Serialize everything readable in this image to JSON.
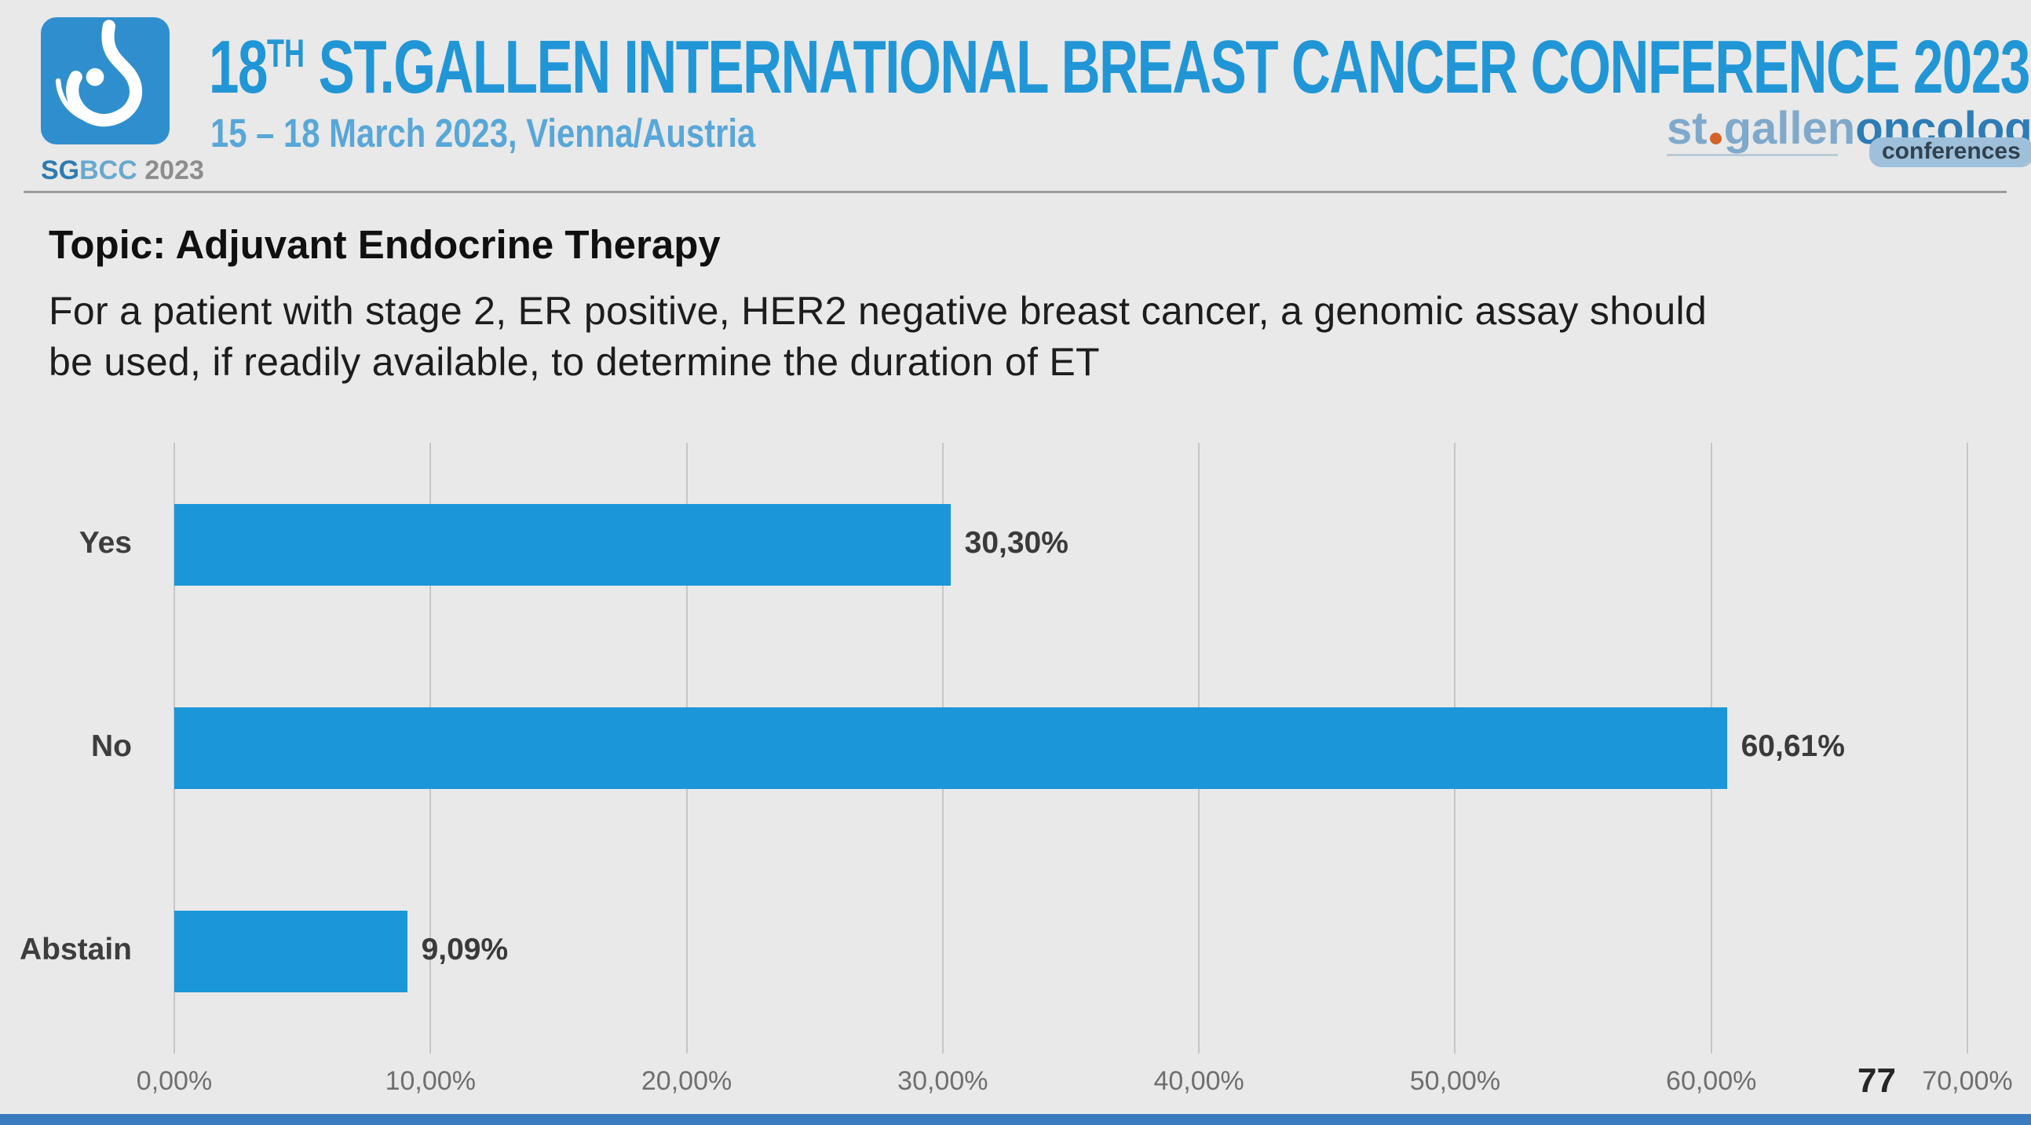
{
  "header": {
    "badge_sg": "SG",
    "badge_bcc": "BCC",
    "badge_year": " 2023",
    "title_number": "18",
    "title_ordinal": "TH",
    "title_rest": " ST.GALLEN INTERNATIONAL BREAST CANCER CONFERENCE 2023",
    "subtitle": "15 – 18 March 2023, Vienna/Austria",
    "logo_right": {
      "st": "st",
      "gallen": "gallen",
      "oncology": "oncology",
      "conferences": "conferences"
    }
  },
  "content": {
    "topic": "Topic: Adjuvant Endocrine Therapy",
    "question_lines": [
      "For a patient with stage 2, ER positive, HER2 negative breast cancer, a genomic assay should",
      "be used, if readily available, to determine the duration of ET"
    ]
  },
  "chart_data": {
    "type": "bar",
    "orientation": "horizontal",
    "categories": [
      "Yes",
      "No",
      "Abstain"
    ],
    "values": [
      30.3,
      60.61,
      9.09
    ],
    "value_labels": [
      "30,30%",
      "60,61%",
      "9,09%"
    ],
    "x_ticks": [
      0,
      10,
      20,
      30,
      40,
      50,
      60,
      70
    ],
    "x_tick_labels": [
      "0,00%",
      "10,00%",
      "20,00%",
      "30,00%",
      "40,00%",
      "50,00%",
      "60,00%",
      "70,00%"
    ],
    "xlim": [
      0,
      70
    ],
    "grid": true,
    "legend": false,
    "bar_color": "#1b96d8"
  },
  "footer": {
    "page_number": "77"
  },
  "colors": {
    "background": "#e9e9e9",
    "title_blue": "#2196d6",
    "subtitle_blue": "#58a7d8",
    "bar_blue": "#1b96d8",
    "logo_square_blue": "#2f8fce",
    "gridline_gray": "#c6c6c6",
    "axis_label_gray": "#6f6f6f",
    "text_dark": "#1d1d1d",
    "separator_gray": "#9c9c9c",
    "stgallen_light_blue": "#7fa9cb",
    "oncology_blue": "#2d7cb5",
    "conferences_pill_bg": "#9fc0da",
    "orange_dot": "#d4622a",
    "bottom_bar_blue": "#3a7cbf"
  }
}
